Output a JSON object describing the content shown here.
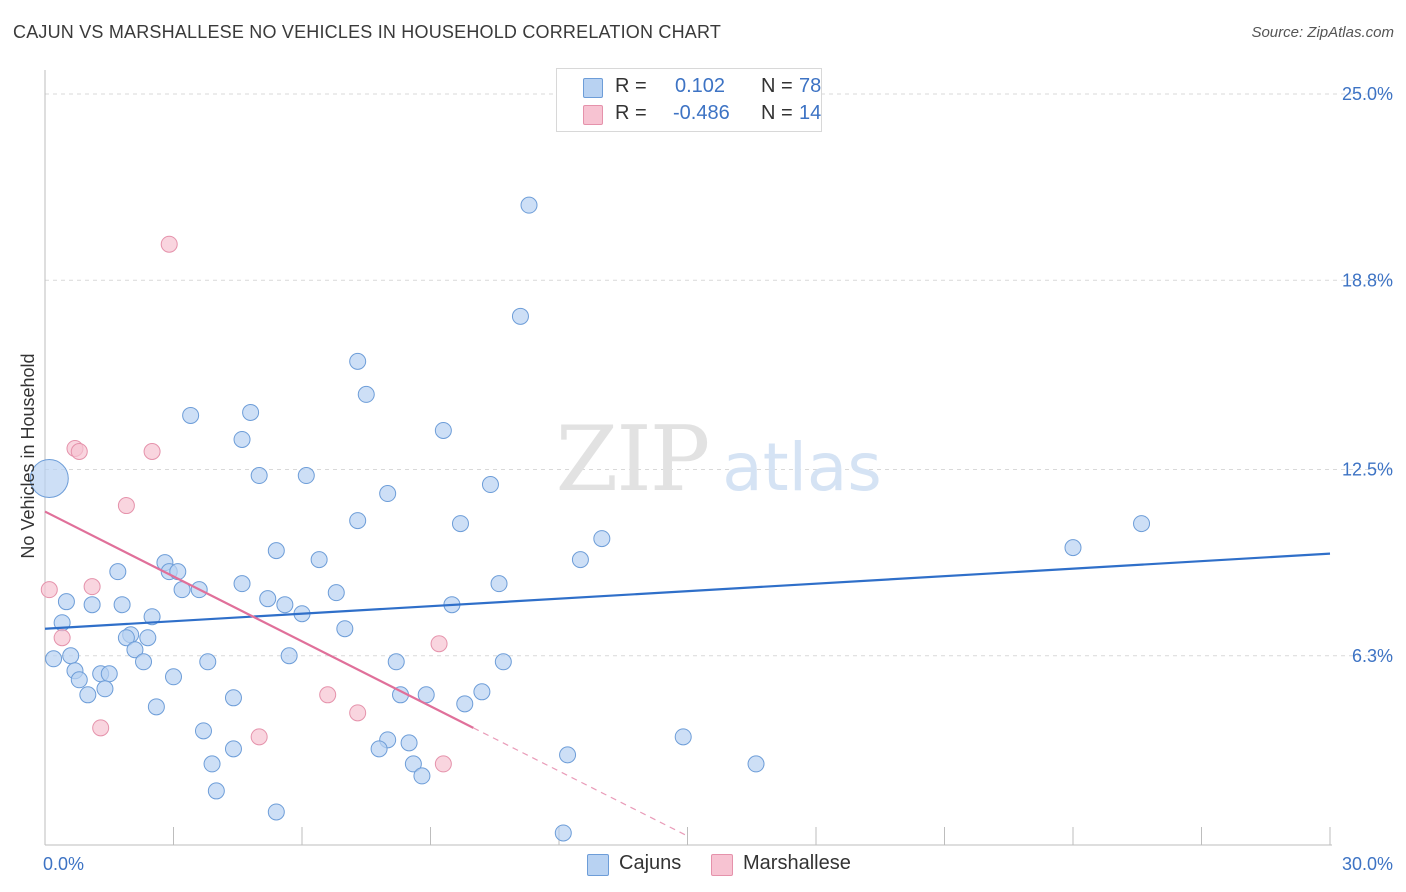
{
  "title": "CAJUN VS MARSHALLESE NO VEHICLES IN HOUSEHOLD CORRELATION CHART",
  "source": "Source: ZipAtlas.com",
  "watermark": {
    "zip": "ZIP",
    "atlas": "atlas"
  },
  "legend": {
    "cajuns": {
      "r_label": "R =",
      "r_value": "0.102",
      "n_label": "N =",
      "n_value": "78"
    },
    "marshallese": {
      "r_label": "R =",
      "r_value": "-0.486",
      "n_label": "N =",
      "n_value": "14"
    }
  },
  "bottom_legend": {
    "cajuns": "Cajuns",
    "marshallese": "Marshallese"
  },
  "colors": {
    "cajuns_fill": "#b8d2f2",
    "cajuns_stroke": "#6d9dd8",
    "cajuns_line": "#2f6fc9",
    "marshallese_fill": "#f7c3d2",
    "marshallese_stroke": "#e592ab",
    "marshallese_line": "#e0709a",
    "tick_label": "#3d73c4",
    "grid": "#d9d9d9"
  },
  "chart_data": {
    "type": "scatter",
    "title": "CAJUN VS MARSHALLESE NO VEHICLES IN HOUSEHOLD CORRELATION CHART",
    "xlabel": "",
    "ylabel": "No Vehicles in Household",
    "xlim": [
      0,
      30
    ],
    "ylim": [
      0,
      25.8
    ],
    "x_tick_labels": [
      {
        "value": 0,
        "label": "0.0%"
      },
      {
        "value": 30,
        "label": "30.0%"
      }
    ],
    "y_tick_labels": [
      {
        "value": 6.3,
        "label": "6.3%"
      },
      {
        "value": 12.5,
        "label": "12.5%"
      },
      {
        "value": 18.8,
        "label": "18.8%"
      },
      {
        "value": 25.0,
        "label": "25.0%"
      }
    ],
    "series": [
      {
        "name": "Cajuns",
        "r": 0.102,
        "n": 78,
        "trend": {
          "x": [
            0,
            30
          ],
          "y": [
            7.2,
            9.7
          ]
        },
        "points": [
          [
            11.3,
            21.3
          ],
          [
            11.1,
            17.6
          ],
          [
            7.3,
            16.1
          ],
          [
            7.5,
            15.0
          ],
          [
            4.8,
            14.4
          ],
          [
            3.4,
            14.3
          ],
          [
            9.3,
            13.8
          ],
          [
            4.6,
            13.5
          ],
          [
            5.0,
            12.3
          ],
          [
            6.1,
            12.3
          ],
          [
            10.4,
            12.0
          ],
          [
            8.0,
            11.7
          ],
          [
            7.3,
            10.8
          ],
          [
            9.7,
            10.7
          ],
          [
            25.6,
            10.7
          ],
          [
            24.0,
            9.9
          ],
          [
            13.0,
            10.2
          ],
          [
            5.4,
            9.8
          ],
          [
            12.5,
            9.5
          ],
          [
            6.4,
            9.5
          ],
          [
            2.8,
            9.4
          ],
          [
            2.9,
            9.1
          ],
          [
            3.1,
            9.1
          ],
          [
            1.7,
            9.1
          ],
          [
            4.6,
            8.7
          ],
          [
            10.6,
            8.7
          ],
          [
            3.2,
            8.5
          ],
          [
            3.6,
            8.5
          ],
          [
            6.8,
            8.4
          ],
          [
            5.2,
            8.2
          ],
          [
            0.5,
            8.1
          ],
          [
            5.6,
            8.0
          ],
          [
            9.5,
            8.0
          ],
          [
            1.1,
            8.0
          ],
          [
            1.8,
            8.0
          ],
          [
            6.0,
            7.7
          ],
          [
            2.5,
            7.6
          ],
          [
            0.4,
            7.4
          ],
          [
            7.0,
            7.2
          ],
          [
            2.0,
            7.0
          ],
          [
            1.9,
            6.9
          ],
          [
            2.4,
            6.9
          ],
          [
            2.1,
            6.5
          ],
          [
            5.7,
            6.3
          ],
          [
            0.6,
            6.3
          ],
          [
            0.2,
            6.2
          ],
          [
            2.3,
            6.1
          ],
          [
            3.8,
            6.1
          ],
          [
            8.2,
            6.1
          ],
          [
            10.7,
            6.1
          ],
          [
            0.7,
            5.8
          ],
          [
            1.3,
            5.7
          ],
          [
            1.5,
            5.7
          ],
          [
            3.0,
            5.6
          ],
          [
            0.8,
            5.5
          ],
          [
            1.4,
            5.2
          ],
          [
            1.0,
            5.0
          ],
          [
            8.3,
            5.0
          ],
          [
            8.9,
            5.0
          ],
          [
            10.2,
            5.1
          ],
          [
            4.4,
            4.9
          ],
          [
            9.8,
            4.7
          ],
          [
            2.6,
            4.6
          ],
          [
            3.7,
            3.8
          ],
          [
            14.9,
            3.6
          ],
          [
            8.0,
            3.5
          ],
          [
            8.5,
            3.4
          ],
          [
            7.8,
            3.2
          ],
          [
            4.4,
            3.2
          ],
          [
            12.2,
            3.0
          ],
          [
            16.6,
            2.7
          ],
          [
            3.9,
            2.7
          ],
          [
            8.6,
            2.7
          ],
          [
            8.8,
            2.3
          ],
          [
            4.0,
            1.8
          ],
          [
            5.4,
            1.1
          ],
          [
            12.1,
            0.4
          ],
          [
            0.1,
            12.2
          ]
        ]
      },
      {
        "name": "Marshallese",
        "r": -0.486,
        "n": 14,
        "trend": {
          "x": [
            0,
            10.0
          ],
          "y": [
            11.1,
            3.9
          ]
        },
        "trend_extension": {
          "x": [
            10.0,
            15.0
          ],
          "y": [
            3.9,
            0.3
          ]
        },
        "points": [
          [
            2.9,
            20.0
          ],
          [
            0.7,
            13.2
          ],
          [
            0.8,
            13.1
          ],
          [
            2.5,
            13.1
          ],
          [
            1.9,
            11.3
          ],
          [
            0.1,
            8.5
          ],
          [
            1.1,
            8.6
          ],
          [
            0.4,
            6.9
          ],
          [
            9.2,
            6.7
          ],
          [
            6.6,
            5.0
          ],
          [
            7.3,
            4.4
          ],
          [
            1.3,
            3.9
          ],
          [
            5.0,
            3.6
          ],
          [
            9.3,
            2.7
          ]
        ]
      }
    ],
    "grid": true,
    "legend_position": "top-center"
  }
}
